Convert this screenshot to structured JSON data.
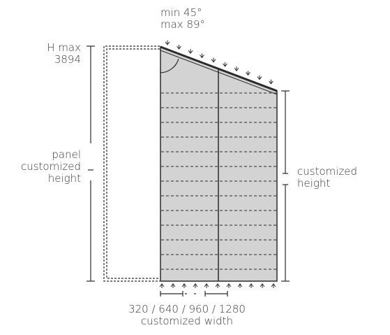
{
  "angle_label": {
    "line1": "min 45°",
    "line2": "max 89°"
  },
  "height_max_label": {
    "line1": "H  max",
    "line2": "3894"
  },
  "panel_height_label": {
    "line1": "panel",
    "line2": "customized",
    "line3": "height"
  },
  "side_height_label": {
    "line1": "customized",
    "line2": "height"
  },
  "width_label": {
    "line1": "320 / 640 / 960 / 1280",
    "line2": "customized width"
  },
  "colors": {
    "panel_fill": "#d3d3d3",
    "line": "#2b2b2b",
    "text": "#3a3a3a"
  },
  "icons": {
    "arrows": "chevron-arrow-icon"
  }
}
